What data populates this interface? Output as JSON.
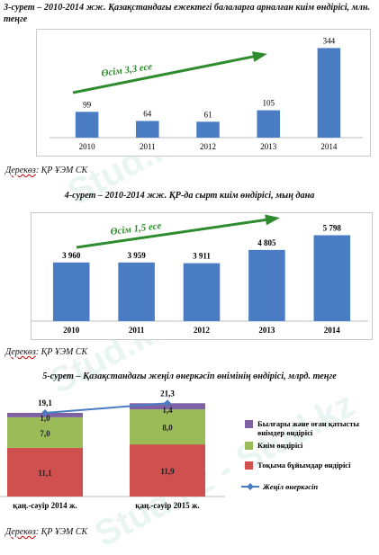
{
  "figure3": {
    "caption": "3-сурет – 2010-2014 жж. Қазақстандағы ежектегі балаларға арналған киім өндірісі, млн. теңге",
    "source_label": "Дерекөз",
    "source_rest": ": ҚР ҰЭМ СК"
  },
  "figure4": {
    "caption": "4-сурет – 2010-2014 жж. ҚР-да сырт киім өндірісі, мың дана",
    "source_label": "Дерекөз",
    "source_rest": ": ҚР ҰЭМ СК"
  },
  "figure5": {
    "caption": "5-сурет – Қазақстандағы жеңіл өнеркәсіп өнімінің өндірісі, млрд. теңге",
    "source_label": "Дерекөз",
    "source_rest": ": ҚР ҰЭМ СК"
  },
  "watermark": "Stud.kz - Stud.kz",
  "chart_data": [
    {
      "type": "bar",
      "categories": [
        "2010",
        "2011",
        "2012",
        "2013",
        "2014"
      ],
      "values": [
        99,
        64,
        61,
        105,
        344
      ],
      "value_labels": [
        "99",
        "64",
        "61",
        "105",
        "344"
      ],
      "ylim": [
        0,
        380
      ],
      "annotation": "Өсім 3,3 есе",
      "colors": {
        "bar": "#4a7cc4",
        "arrow": "#2e8b2e"
      }
    },
    {
      "type": "bar",
      "categories": [
        "2010",
        "2011",
        "2012",
        "2013",
        "2014"
      ],
      "values": [
        3960,
        3959,
        3911,
        4805,
        5798
      ],
      "value_labels": [
        "3 960",
        "3 959",
        "3 911",
        "4 805",
        "5 798"
      ],
      "ylim": [
        0,
        6800
      ],
      "annotation": "Өсім 1,5 есе",
      "colors": {
        "bar": "#4a7cc4",
        "arrow": "#2e8b2e"
      }
    },
    {
      "type": "bar",
      "stacked": true,
      "categories": [
        "қаң.-сәуір 2014 ж.",
        "қаң.-сәуір 2015 ж."
      ],
      "series": [
        {
          "name": "Тоқыма бұйымдар өндірісі",
          "values": [
            11.1,
            11.9
          ],
          "labels": [
            "11,1",
            "11,9"
          ],
          "color": "#d0504f"
        },
        {
          "name": "Киім өндірісі",
          "values": [
            7.0,
            8.0
          ],
          "labels": [
            "7,0",
            "8,0"
          ],
          "color": "#9bbb59"
        },
        {
          "name": "Былғары және оған қатысты өнімдер өндірісі",
          "values": [
            1.0,
            1.4
          ],
          "labels": [
            "1,0",
            "1,4"
          ],
          "color": "#7f62a3"
        }
      ],
      "line": {
        "name": "Жеңіл өнеркәсіп",
        "values": [
          19.1,
          21.3
        ],
        "labels": [
          "19,1",
          "21,3"
        ],
        "color": "#4a7cc4"
      },
      "ylim": [
        0,
        23
      ]
    }
  ]
}
